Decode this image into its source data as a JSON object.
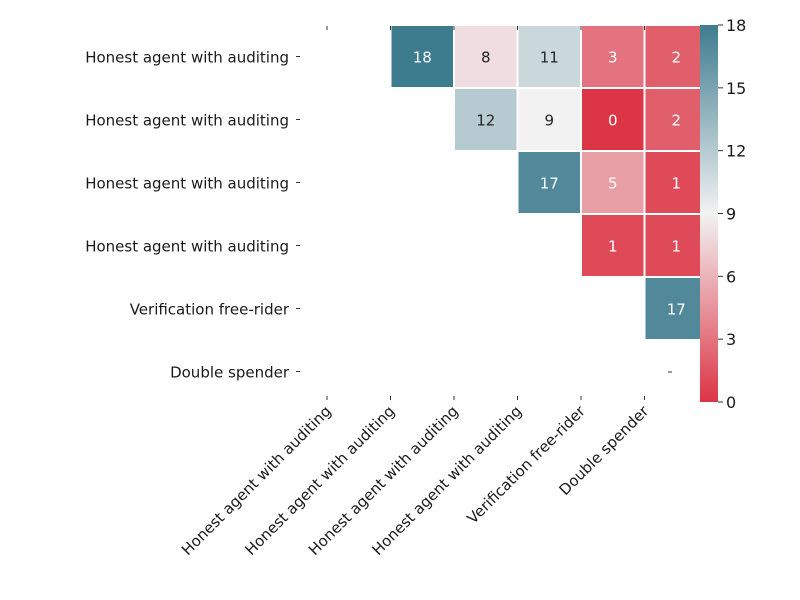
{
  "chart_data": {
    "type": "heatmap",
    "title": "",
    "xlabel": "",
    "ylabel": "",
    "row_labels": [
      "Honest agent with auditing",
      "Honest agent with auditing",
      "Honest agent with auditing",
      "Honest agent with auditing",
      "Verification free-rider",
      "Double spender"
    ],
    "col_labels": [
      "Honest agent with auditing",
      "Honest agent with auditing",
      "Honest agent with auditing",
      "Honest agent with auditing",
      "Verification free-rider",
      "Double spender"
    ],
    "values": [
      [
        null,
        18,
        8,
        11,
        3,
        2
      ],
      [
        null,
        null,
        12,
        9,
        0,
        2
      ],
      [
        null,
        null,
        null,
        17,
        5,
        1
      ],
      [
        null,
        null,
        null,
        null,
        1,
        1
      ],
      [
        null,
        null,
        null,
        null,
        null,
        17
      ],
      [
        null,
        null,
        null,
        null,
        null,
        null
      ]
    ],
    "colorbar": {
      "min": 0,
      "max": 18,
      "ticks": [
        "0",
        "3",
        "6",
        "9",
        "12",
        "15",
        "18"
      ],
      "colors": {
        "low": "#dc3545",
        "mid": "#f2f2f2",
        "high": "#3d7c8f"
      }
    },
    "grid": false,
    "legend": "colorbar-right"
  }
}
